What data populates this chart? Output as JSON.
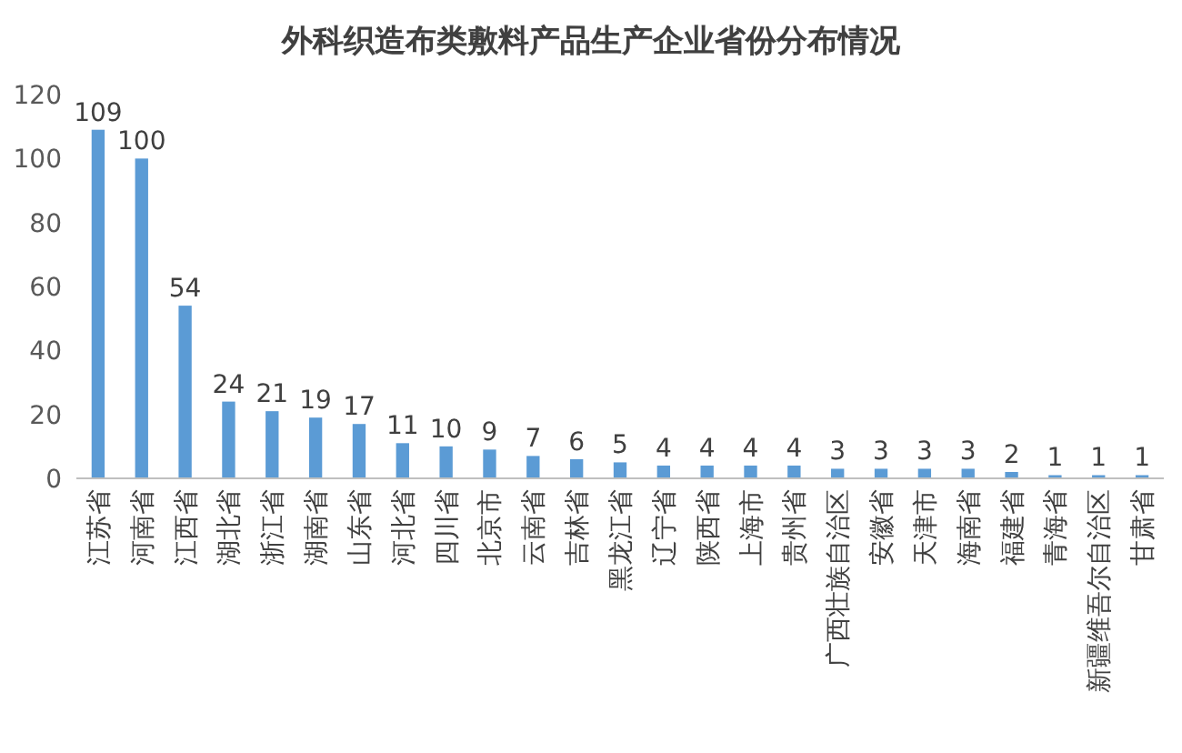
{
  "chart_data": {
    "type": "bar",
    "title": "外科织造布类敷料产品生产企业省份分布情况",
    "categories": [
      "江苏省",
      "河南省",
      "江西省",
      "湖北省",
      "浙江省",
      "湖南省",
      "山东省",
      "河北省",
      "四川省",
      "北京市",
      "云南省",
      "吉林省",
      "黑龙江省",
      "辽宁省",
      "陕西省",
      "上海市",
      "贵州省",
      "广西壮族自治区",
      "安徽省",
      "天津市",
      "海南省",
      "福建省",
      "青海省",
      "新疆维吾尔自治区",
      "甘肃省"
    ],
    "values": [
      109,
      100,
      54,
      24,
      21,
      19,
      17,
      11,
      10,
      9,
      7,
      6,
      5,
      4,
      4,
      4,
      4,
      3,
      3,
      3,
      3,
      2,
      1,
      1,
      1
    ],
    "color": "#5b9bd5",
    "ylim": [
      0,
      120
    ],
    "yticks": [
      0,
      20,
      40,
      60,
      80,
      100,
      120
    ],
    "data_labels": true,
    "grid": false
  }
}
